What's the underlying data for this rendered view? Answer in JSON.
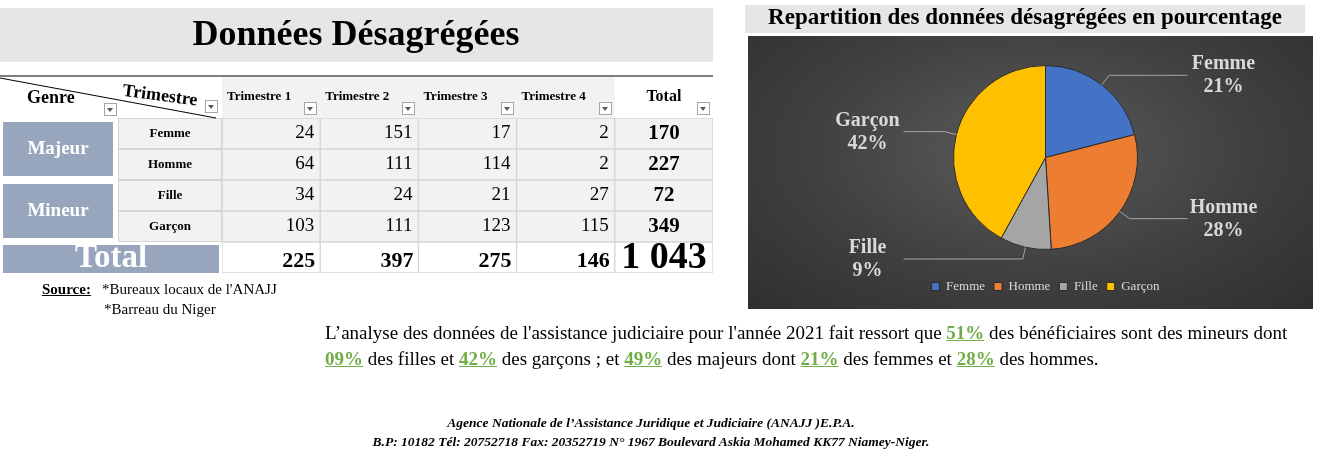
{
  "chart_data": [
    {
      "type": "heatmap",
      "title": "Données Désagrégées",
      "xlabel": "Trimestre",
      "ylabel": "Genre",
      "categories": [
        "Trimestre 1",
        "Trimestre 2",
        "Trimestre 3",
        "Trimestre 4",
        "Total"
      ],
      "y_categories": [
        "Femme",
        "Homme",
        "Fille",
        "Garçon",
        null
      ],
      "y2_categories": [
        "Majeur",
        null,
        "Mineur",
        null,
        "Total"
      ],
      "cells": [
        [
          24,
          151,
          17,
          2,
          170
        ],
        [
          64,
          111,
          114,
          2,
          227
        ],
        [
          34,
          24,
          21,
          27,
          72
        ],
        [
          103,
          111,
          123,
          115,
          349
        ],
        [
          225,
          397,
          275,
          146,
          1043
        ]
      ],
      "data_labels": true,
      "annotations": [
        "Source:",
        "*Bureaux locaux de l'ANAJJ",
        "*Barreau du Niger"
      ]
    },
    {
      "type": "pie",
      "title": "Repartition des données désagrégées en pourcentage",
      "categories": [
        "Femme",
        "Homme",
        "Fille",
        "Garçon"
      ],
      "values": [
        21,
        28,
        9,
        42
      ],
      "colors": [
        "#4472c4",
        "#ed7d31",
        "#a5a5a5",
        "#ffc000"
      ],
      "value_labels": [
        "21%",
        "28%",
        "9%",
        "42%"
      ],
      "legend": "bottom",
      "annotations": [
        "L’analyse des données de l'assistance judiciaire pour l'année 2021 fait ressort que 51% des bénéficiaires sont des mineurs dont 09% des filles et 42% des garçons ; et 49% des majeurs dont 21% des femmes et 28% des hommes.",
        "Agence Nationale de l’Assistance Juridique et Judiciaire (ANAJJ )E.P.A.",
        "B.P: 10182 Tél: 20752718 Fax: 20352719 N° 1967 Boulevard Askia Mohamed KK77 Niamey-Niger."
      ]
    }
  ]
}
